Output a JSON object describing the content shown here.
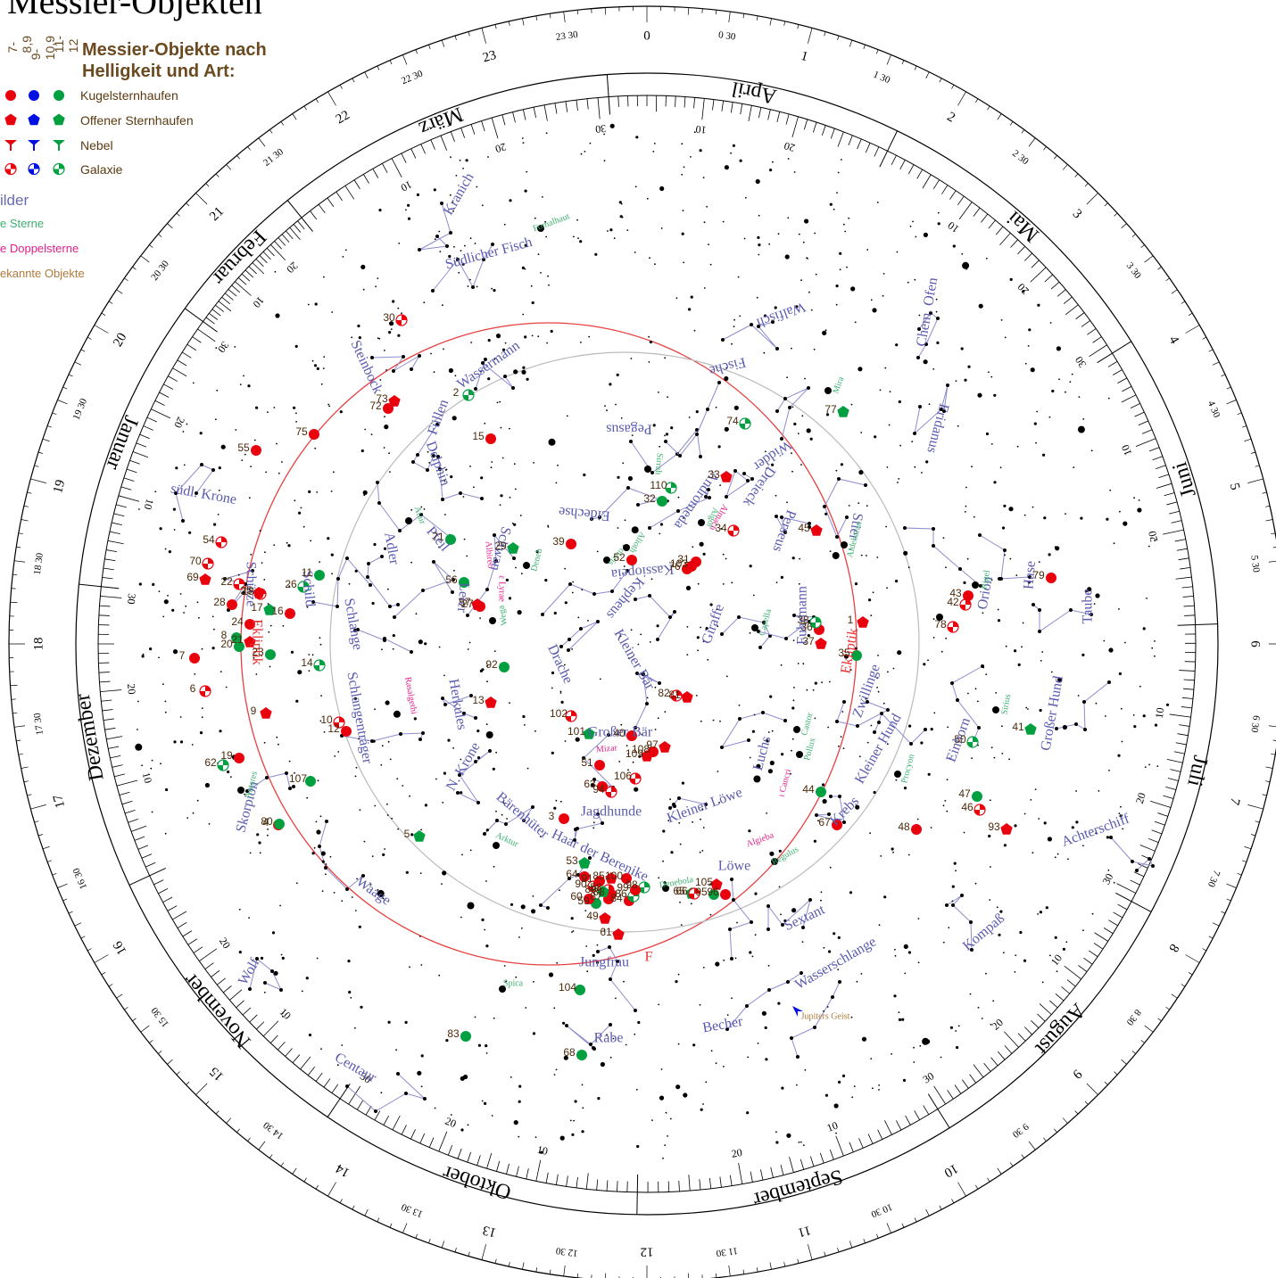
{
  "title": "Messier-Objekten",
  "legend": {
    "heading": [
      "Messier-Objekte nach",
      "Helligkeit und Art:"
    ],
    "magnitudes": [
      "7-8,9",
      "9-10,9",
      "11-12"
    ],
    "mag_colors": [
      "#e8000d",
      "#0010e0",
      "#00a040"
    ],
    "types": [
      {
        "label": "Kugelsternhaufen",
        "shape": "circle"
      },
      {
        "label": "Offener Sternhaufen",
        "shape": "pentagon"
      },
      {
        "label": "Nebel",
        "shape": "nebula"
      },
      {
        "label": "Galaxie",
        "shape": "galaxy"
      }
    ],
    "extra": [
      {
        "label": "ilder",
        "color": "#6a6ab0",
        "size": 17
      },
      {
        "label": "e Sterne",
        "color": "#3cb070",
        "size": 12
      },
      {
        "label": "e Doppelsterne",
        "color": "#e0208a",
        "size": 12
      },
      {
        "label": "ekannte Objekte",
        "color": "#b07a3a",
        "size": 12
      }
    ]
  },
  "months": [
    "März",
    "April",
    "Mai",
    "Juni",
    "Juli",
    "August",
    "September",
    "Oktober",
    "November",
    "Dezember",
    "Januar",
    "Februar"
  ],
  "hour_labels": [
    "0",
    "1",
    "2",
    "3",
    "4",
    "5",
    "6",
    "7",
    "8",
    "9",
    "10",
    "11",
    "12",
    "13",
    "14",
    "15",
    "16",
    "17",
    "18",
    "19",
    "20",
    "21",
    "22",
    "23"
  ],
  "half_hour_labels": [
    "0 30",
    "1 30",
    "2 30",
    "3 30",
    "4 30",
    "5 30",
    "6 30",
    "7 30",
    "8 30",
    "9 30",
    "10 30",
    "11 30",
    "12 30",
    "13 30",
    "14 30",
    "15 30",
    "16 30",
    "17 30",
    "18 30",
    "19 30",
    "20 30",
    "21 30",
    "22 30",
    "23 30"
  ],
  "day_labels": [
    "10",
    "20",
    "30"
  ],
  "ecliptic_label": "Ekliptik",
  "ecliptic_mark": "F",
  "constellations": [
    {
      "name": "Kranich",
      "c": "#5a5ab0"
    },
    {
      "name": "Südlicher Fisch",
      "c": "#5a5ab0"
    },
    {
      "name": "Wassermann",
      "c": "#5a5ab0"
    },
    {
      "name": "Steinbock",
      "c": "#5a5ab0"
    },
    {
      "name": "Füllen",
      "c": "#5a5ab0"
    },
    {
      "name": "Delphin",
      "c": "#5a5ab0"
    },
    {
      "name": "Pegasus",
      "c": "#5a5ab0"
    },
    {
      "name": "Fische",
      "c": "#5a5ab0"
    },
    {
      "name": "Walfisch",
      "c": "#5a5ab0"
    },
    {
      "name": "Chem. Ofen",
      "c": "#5a5ab0"
    },
    {
      "name": "Eridanus",
      "c": "#5a5ab0"
    },
    {
      "name": "Widder",
      "c": "#5a5ab0"
    },
    {
      "name": "Dreieck",
      "c": "#5a5ab0"
    },
    {
      "name": "Andromeda",
      "c": "#5a5ab0"
    },
    {
      "name": "Eidechse",
      "c": "#5a5ab0"
    },
    {
      "name": "Kassiopeia",
      "c": "#5a5ab0"
    },
    {
      "name": "Perseus",
      "c": "#5a5ab0"
    },
    {
      "name": "Stier",
      "c": "#5a5ab0"
    },
    {
      "name": "Orion",
      "c": "#5a5ab0"
    },
    {
      "name": "Hase",
      "c": "#5a5ab0"
    },
    {
      "name": "Taube",
      "c": "#5a5ab0"
    },
    {
      "name": "südl. Krone",
      "c": "#5a5ab0"
    },
    {
      "name": "Adler",
      "c": "#5a5ab0"
    },
    {
      "name": "Pfeil",
      "c": "#5a5ab0"
    },
    {
      "name": "Schwan",
      "c": "#5a5ab0"
    },
    {
      "name": "Leier",
      "c": "#5a5ab0"
    },
    {
      "name": "Kepheus",
      "c": "#5a5ab0"
    },
    {
      "name": "Giraffe",
      "c": "#5a5ab0"
    },
    {
      "name": "Fuhrmann",
      "c": "#5a5ab0"
    },
    {
      "name": "Schild",
      "c": "#5a5ab0"
    },
    {
      "name": "Schlange",
      "c": "#5a5ab0"
    },
    {
      "name": "Schütze",
      "c": "#5a5ab0"
    },
    {
      "name": "Drache",
      "c": "#5a5ab0"
    },
    {
      "name": "Kleiner Bär",
      "c": "#5a5ab0"
    },
    {
      "name": "Großer Bär",
      "c": "#5a5ab0"
    },
    {
      "name": "Luchs",
      "c": "#5a5ab0"
    },
    {
      "name": "Zwillinge",
      "c": "#5a5ab0"
    },
    {
      "name": "Herkules",
      "c": "#5a5ab0"
    },
    {
      "name": "Schlangenträger",
      "c": "#5a5ab0"
    },
    {
      "name": "N. Krone",
      "c": "#5a5ab0"
    },
    {
      "name": "Jagdhunde",
      "c": "#5a5ab0"
    },
    {
      "name": "Kleiner Löwe",
      "c": "#5a5ab0"
    },
    {
      "name": "Kleiner Hund",
      "c": "#5a5ab0"
    },
    {
      "name": "Einhorn",
      "c": "#5a5ab0"
    },
    {
      "name": "Großer Hund",
      "c": "#5a5ab0"
    },
    {
      "name": "Bärenhüter",
      "c": "#5a5ab0"
    },
    {
      "name": "Haar der Berenike",
      "c": "#5a5ab0"
    },
    {
      "name": "Krebs",
      "c": "#5a5ab0"
    },
    {
      "name": "Löwe",
      "c": "#5a5ab0"
    },
    {
      "name": "Skorpion",
      "c": "#5a5ab0"
    },
    {
      "name": "Waage",
      "c": "#5a5ab0"
    },
    {
      "name": "Jungfrau",
      "c": "#5a5ab0"
    },
    {
      "name": "Sextant",
      "c": "#5a5ab0"
    },
    {
      "name": "Wasserschlange",
      "c": "#5a5ab0"
    },
    {
      "name": "Achterschiff",
      "c": "#5a5ab0"
    },
    {
      "name": "Kompaß",
      "c": "#5a5ab0"
    },
    {
      "name": "Wolf",
      "c": "#5a5ab0"
    },
    {
      "name": "Becher",
      "c": "#5a5ab0"
    },
    {
      "name": "Rabe",
      "c": "#5a5ab0"
    },
    {
      "name": "Centaur",
      "c": "#5a5ab0"
    }
  ],
  "star_names": [
    "Fomalhaut",
    "Sirrah",
    "Mira",
    "Algol",
    "Capella",
    "Aldebaran",
    "Rigel",
    "Sirius",
    "Procyon",
    "Castor",
    "Pollux",
    "Regulus",
    "Denebola",
    "Arktur",
    "Spica",
    "Antares",
    "Wega",
    "Deneb",
    "Atair",
    "Polaris",
    "Alioth"
  ],
  "double_stars": [
    "Mizar",
    "Albireo",
    "ε Lyrae",
    "Rasalgethi",
    "Algieba",
    "ι Cancri",
    "Almach"
  ],
  "special_objects": [
    "Jupiters Geist"
  ],
  "messier": [
    "1",
    "2",
    "3",
    "4",
    "5",
    "6",
    "7",
    "8",
    "9",
    "10",
    "11",
    "12",
    "13",
    "14",
    "15",
    "16",
    "17",
    "18",
    "19",
    "20",
    "21",
    "22",
    "23",
    "24",
    "25",
    "26",
    "27",
    "28",
    "29",
    "30",
    "31",
    "32",
    "33",
    "34",
    "35",
    "36",
    "37",
    "38",
    "39",
    "40",
    "41",
    "42",
    "43",
    "44",
    "45",
    "46",
    "47",
    "48",
    "49",
    "50",
    "51",
    "52",
    "53",
    "54",
    "55",
    "56",
    "57",
    "58",
    "59",
    "60",
    "61",
    "62",
    "63",
    "64",
    "65",
    "66",
    "67",
    "68",
    "69",
    "70",
    "71",
    "72",
    "73",
    "74",
    "75",
    "76",
    "77",
    "78",
    "79",
    "80",
    "81",
    "82",
    "83",
    "84",
    "85",
    "86",
    "87",
    "88",
    "89",
    "90",
    "91",
    "92",
    "93",
    "94",
    "95",
    "96",
    "97",
    "98",
    "99",
    "100",
    "101",
    "102",
    "103",
    "104",
    "105",
    "106",
    "107",
    "108",
    "109",
    "110"
  ]
}
